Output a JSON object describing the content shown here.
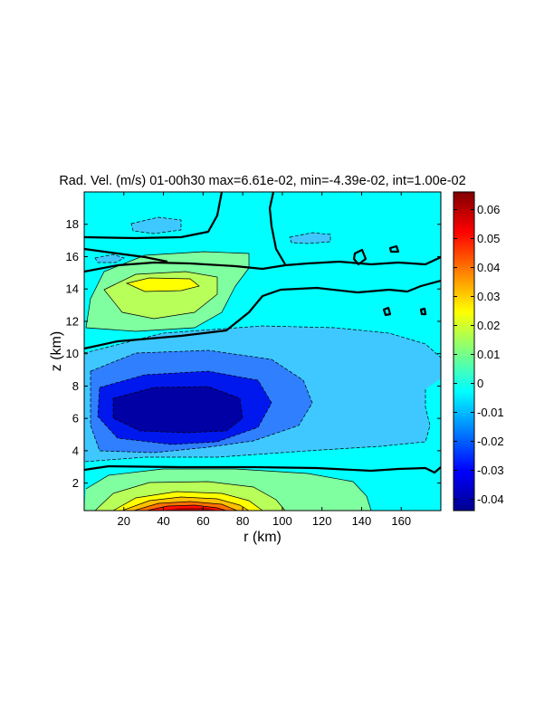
{
  "chart_data": {
    "type": "filled-contour",
    "title": "Rad. Vel. (m/s) 01-00h30 max=6.61e-02, min=-4.39e-02, int=1.00e-02",
    "xlabel": "r (km)",
    "ylabel": "z (km)",
    "xlim": [
      0,
      180
    ],
    "ylim": [
      0.3,
      20
    ],
    "xticks": [
      "20",
      "40",
      "60",
      "80",
      "100",
      "120",
      "140",
      "160"
    ],
    "xtick_values": [
      20,
      40,
      60,
      80,
      100,
      120,
      140,
      160
    ],
    "yticks": [
      "2",
      "4",
      "6",
      "8",
      "10",
      "12",
      "14",
      "16",
      "18"
    ],
    "ytick_values": [
      2,
      4,
      6,
      8,
      10,
      12,
      14,
      16,
      18
    ],
    "field_stats": {
      "max": 0.0661,
      "min": -0.0439,
      "interval": 0.01
    },
    "contour_levels": [
      -0.04,
      -0.03,
      -0.02,
      -0.01,
      0.0,
      0.01,
      0.02,
      0.03,
      0.04,
      0.05,
      0.06
    ],
    "colorbar": {
      "colormap": "jet",
      "range": [
        -0.0439,
        0.0661
      ],
      "ticks": [
        "0.06",
        "0.05",
        "0.04",
        "0.03",
        "0.02",
        "0.01",
        "0",
        "-0.01",
        "-0.02",
        "-0.03",
        "-0.04"
      ],
      "tick_values": [
        0.06,
        0.05,
        0.04,
        0.03,
        0.02,
        0.01,
        0.0,
        -0.01,
        -0.02,
        -0.03,
        -0.04
      ]
    },
    "features": [
      {
        "name": "low-level outflow maximum",
        "r_km": 50,
        "z_km": 0.5,
        "value": 0.066
      },
      {
        "name": "mid-level inflow minimum",
        "r_km": 45,
        "z_km": 6.6,
        "value": -0.044
      },
      {
        "name": "upper outflow maximum",
        "r_km": 45,
        "z_km": 14.2,
        "value": 0.022
      },
      {
        "name": "upper inflow patch",
        "r_km": 40,
        "z_km": 18.6,
        "value": -0.012
      },
      {
        "name": "upper inflow patch",
        "r_km": 127,
        "z_km": 16.8,
        "value": -0.011
      }
    ],
    "grid": false,
    "legend": "colorbar-right"
  }
}
